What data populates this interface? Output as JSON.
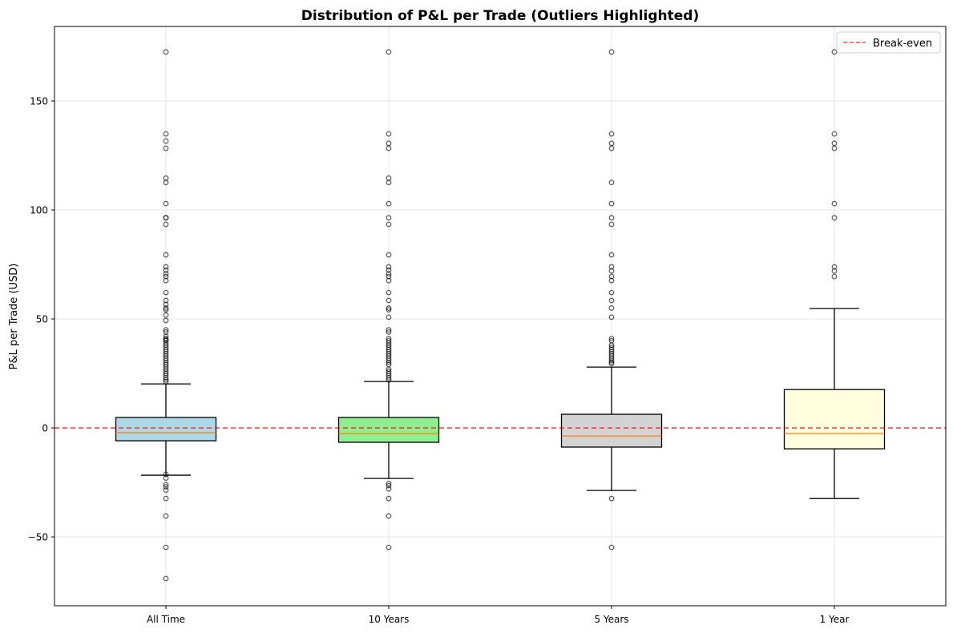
{
  "chart_data": {
    "type": "box",
    "title": "Distribution of P&L per Trade (Outliers Highlighted)",
    "xlabel": "",
    "ylabel": "P&L per Trade (USD)",
    "ylim": [
      -81.6,
      184.2
    ],
    "yticks": [
      -50,
      0,
      50,
      100,
      150
    ],
    "grid": true,
    "legend": {
      "position": "top-right",
      "entries": [
        "Break-even"
      ]
    },
    "reference_line": {
      "name": "Break-even",
      "y": 0,
      "color": "#ff0000",
      "style": "dashed"
    },
    "median_color": "#ff7f0e",
    "categories": [
      "All Time",
      "10 Years",
      "5 Years",
      "1 Year"
    ],
    "boxes": [
      {
        "label": "All Time",
        "color": "#add8e6",
        "whisker_low": -21.7,
        "q1": -5.9,
        "median": -2.2,
        "q3": 4.8,
        "whisker_high": 20.2,
        "outliers": [
          172.5,
          134.9,
          131.6,
          128.3,
          114.6,
          112.6,
          102.9,
          96.4,
          96.4,
          93.4,
          79.4,
          73.9,
          72.4,
          70.7,
          69.5,
          67.6,
          62.1,
          58.5,
          56.6,
          55,
          54.2,
          51.8,
          49.3,
          45,
          44,
          42,
          41,
          40.5,
          40,
          39,
          38,
          37,
          36,
          35,
          34,
          33,
          32,
          31,
          30,
          29,
          28,
          27,
          26,
          25,
          24,
          23,
          22,
          21.2,
          -21.3,
          -23,
          -26,
          -27,
          -28.5,
          -32.4,
          -40.4,
          -54.8,
          -69.1
        ]
      },
      {
        "label": "10 Years",
        "color": "#90ee90",
        "whisker_low": -23.2,
        "q1": -6.6,
        "median": -2.6,
        "q3": 4.8,
        "whisker_high": 21.3,
        "outliers": [
          172.5,
          134.9,
          130.6,
          128.3,
          114.6,
          112.6,
          102.9,
          96.4,
          93.4,
          79.4,
          73.9,
          72.4,
          70.7,
          69.5,
          67.6,
          62.1,
          58.5,
          55,
          54.2,
          50.8,
          45,
          44,
          41,
          40,
          39,
          38,
          37,
          36,
          35,
          34,
          33,
          32,
          31,
          30,
          29,
          27,
          26,
          25,
          24,
          23,
          22,
          -25.5,
          -26.5,
          -28,
          -32.4,
          -40.4,
          -54.8
        ]
      },
      {
        "label": "5 Years",
        "color": "#d3d3d3",
        "whisker_low": -28.7,
        "q1": -8.8,
        "median": -3.7,
        "q3": 6.25,
        "whisker_high": 27.9,
        "outliers": [
          172.5,
          134.9,
          130.6,
          128.3,
          112.6,
          102.9,
          96.4,
          93.4,
          79.4,
          73.9,
          72,
          69.5,
          67.6,
          62.1,
          58.5,
          55,
          50.8,
          41,
          40,
          38,
          37,
          36,
          35,
          34,
          33,
          32,
          31,
          30.2,
          29.5,
          -32.4,
          -54.8
        ]
      },
      {
        "label": "1 Year",
        "color": "#ffffe0",
        "whisker_low": -32.4,
        "q1": -9.6,
        "median": -2.6,
        "q3": 17.6,
        "whisker_high": 54.8,
        "outliers": [
          172.5,
          134.9,
          130.6,
          128.3,
          102.9,
          96.4,
          73.9,
          72,
          69.5
        ]
      }
    ]
  }
}
